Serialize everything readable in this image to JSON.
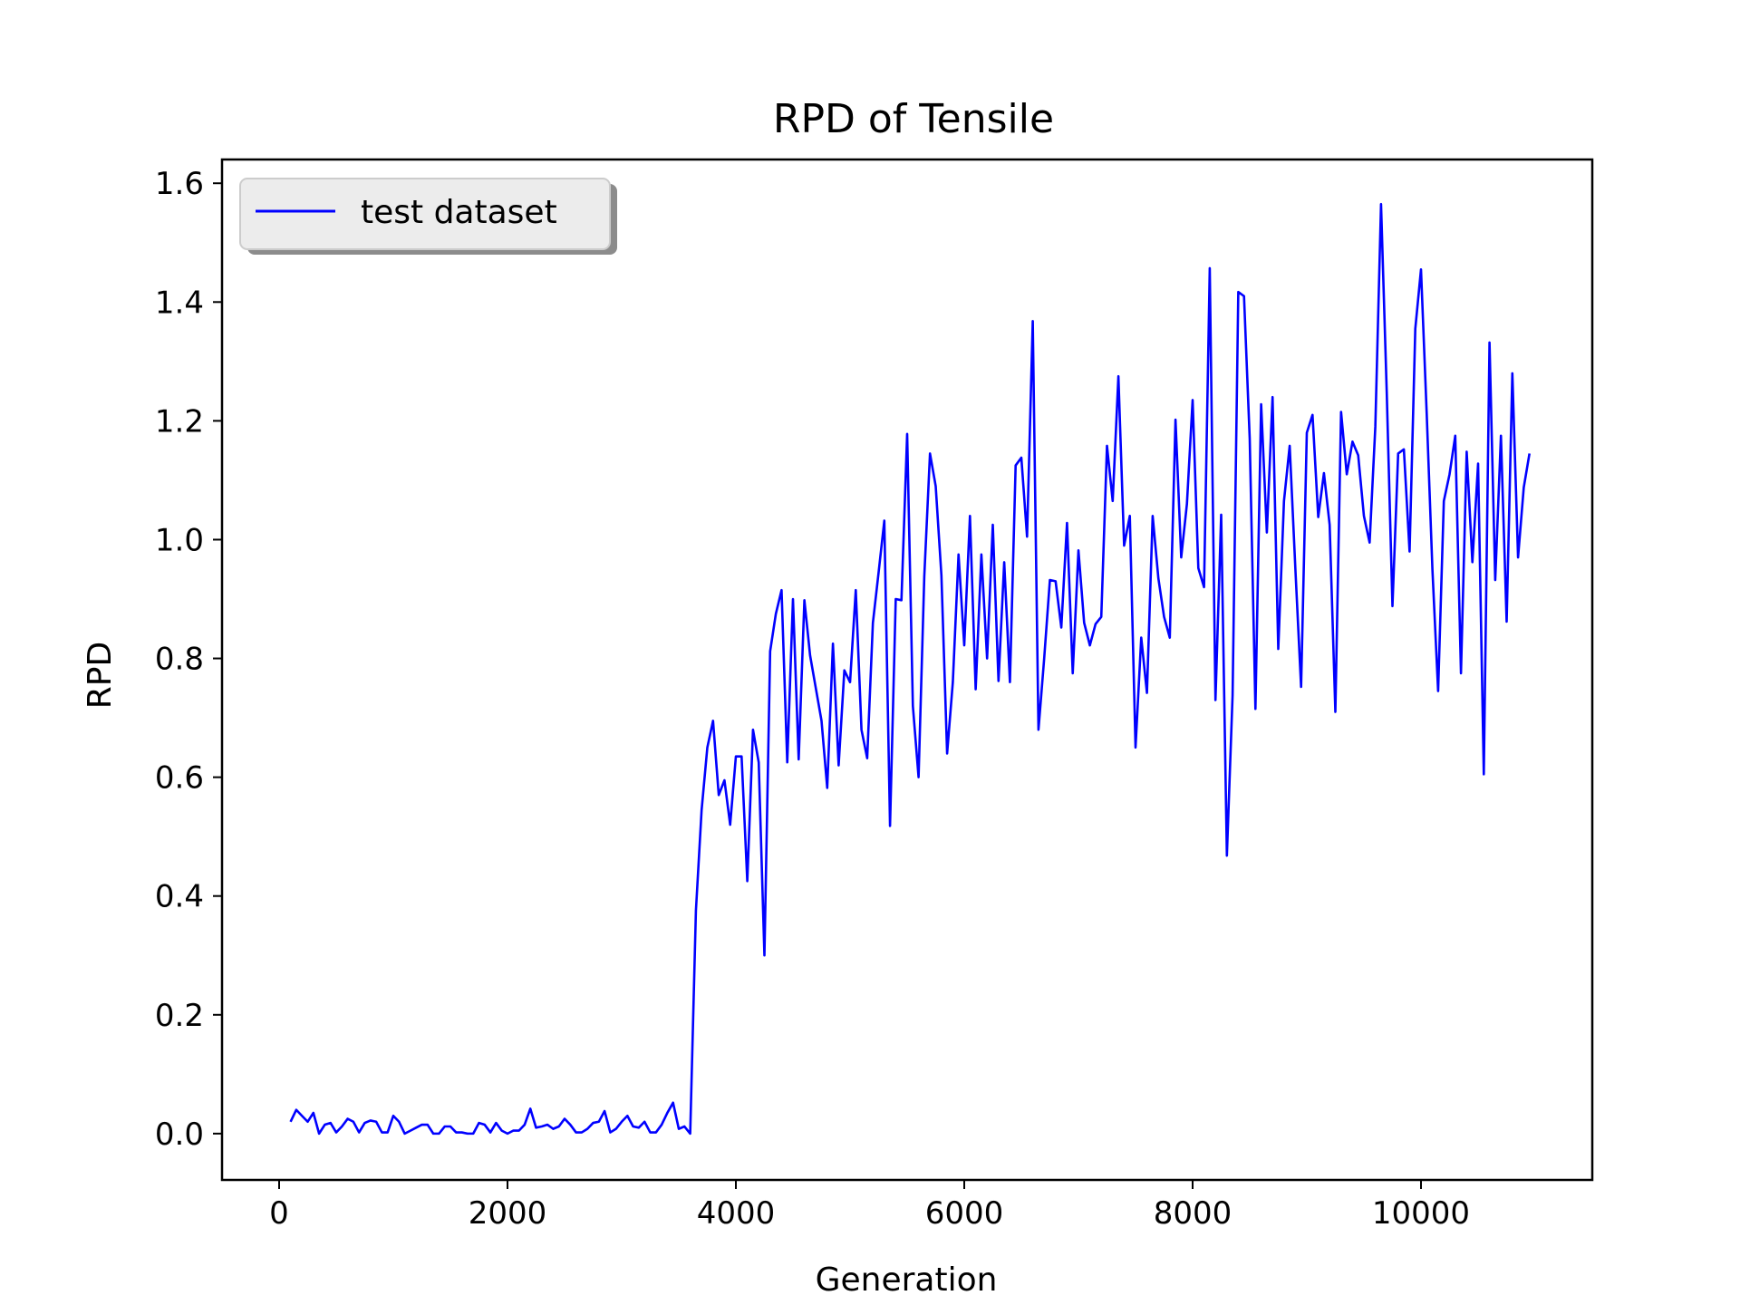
{
  "chart_data": {
    "type": "line",
    "title": "RPD of Tensile",
    "xlabel": "Generation",
    "ylabel": "RPD",
    "xlim": [
      -500,
      11500
    ],
    "ylim": [
      -0.078,
      1.64
    ],
    "xticks": [
      0,
      2000,
      4000,
      6000,
      8000,
      10000
    ],
    "yticks": [
      0.0,
      0.2,
      0.4,
      0.6,
      0.8,
      1.0,
      1.2,
      1.4,
      1.6
    ],
    "xtick_labels": [
      "0",
      "2000",
      "4000",
      "6000",
      "8000",
      "10000"
    ],
    "ytick_labels": [
      "0.0",
      "0.2",
      "0.4",
      "0.6",
      "0.8",
      "1.0",
      "1.2",
      "1.4",
      "1.6"
    ],
    "grid": false,
    "legend_position": "upper left",
    "series": [
      {
        "name": "test dataset",
        "color": "#0000ff",
        "x": [
          100,
          150,
          200,
          250,
          300,
          350,
          400,
          450,
          500,
          550,
          600,
          650,
          700,
          750,
          800,
          850,
          900,
          950,
          1000,
          1050,
          1100,
          1150,
          1200,
          1250,
          1300,
          1350,
          1400,
          1450,
          1500,
          1550,
          1600,
          1650,
          1700,
          1750,
          1800,
          1850,
          1900,
          1950,
          2000,
          2050,
          2100,
          2150,
          2200,
          2250,
          2300,
          2350,
          2400,
          2450,
          2500,
          2550,
          2600,
          2650,
          2700,
          2750,
          2800,
          2850,
          2900,
          2950,
          3000,
          3050,
          3100,
          3150,
          3200,
          3250,
          3300,
          3350,
          3400,
          3450,
          3500,
          3550,
          3600,
          3650,
          3700,
          3750,
          3800,
          3850,
          3900,
          3950,
          4000,
          4050,
          4100,
          4150,
          4200,
          4250,
          4300,
          4350,
          4400,
          4450,
          4500,
          4550,
          4600,
          4650,
          4700,
          4750,
          4800,
          4850,
          4900,
          4950,
          5000,
          5050,
          5100,
          5150,
          5200,
          5250,
          5300,
          5350,
          5400,
          5450,
          5500,
          5550,
          5600,
          5650,
          5700,
          5750,
          5800,
          5850,
          5900,
          5950,
          6000,
          6050,
          6100,
          6150,
          6200,
          6250,
          6300,
          6350,
          6400,
          6450,
          6500,
          6550,
          6600,
          6650,
          6700,
          6750,
          6800,
          6850,
          6900,
          6950,
          7000,
          7050,
          7100,
          7150,
          7200,
          7250,
          7300,
          7350,
          7400,
          7450,
          7500,
          7550,
          7600,
          7650,
          7700,
          7750,
          7800,
          7850,
          7900,
          7950,
          8000,
          8050,
          8100,
          8150,
          8200,
          8250,
          8300,
          8350,
          8400,
          8450,
          8500,
          8550,
          8600,
          8650,
          8700,
          8750,
          8800,
          8850,
          8900,
          8950,
          9000,
          9050,
          9100,
          9150,
          9200,
          9250,
          9300,
          9350,
          9400,
          9450,
          9500,
          9550,
          9600,
          9650,
          9700,
          9750,
          9800,
          9850,
          9900,
          9950,
          10000,
          10050,
          10100,
          10150,
          10200,
          10250,
          10300,
          10350,
          10400,
          10450,
          10500,
          10550,
          10600,
          10650,
          10700,
          10750,
          10800,
          10850,
          10900,
          10950
        ],
        "y": [
          0.02,
          0.04,
          0.03,
          0.02,
          0.035,
          0.0,
          0.015,
          0.018,
          0.002,
          0.012,
          0.025,
          0.02,
          0.002,
          0.018,
          0.022,
          0.02,
          0.002,
          0.002,
          0.03,
          0.02,
          0.0,
          0.005,
          0.01,
          0.015,
          0.015,
          0.0,
          0.0,
          0.012,
          0.012,
          0.002,
          0.002,
          0.0,
          0.0,
          0.018,
          0.015,
          0.002,
          0.018,
          0.005,
          0.0,
          0.005,
          0.005,
          0.015,
          0.042,
          0.01,
          0.012,
          0.015,
          0.008,
          0.012,
          0.025,
          0.015,
          0.002,
          0.002,
          0.008,
          0.018,
          0.02,
          0.038,
          0.002,
          0.008,
          0.02,
          0.03,
          0.012,
          0.01,
          0.02,
          0.002,
          0.002,
          0.015,
          0.035,
          0.052,
          0.008,
          0.012,
          0.0,
          0.375,
          0.545,
          0.65,
          0.695,
          0.57,
          0.595,
          0.52,
          0.635,
          0.635,
          0.425,
          0.68,
          0.625,
          0.3,
          0.812,
          0.875,
          0.915,
          0.625,
          0.9,
          0.63,
          0.898,
          0.805,
          0.75,
          0.695,
          0.582,
          0.825,
          0.62,
          0.78,
          0.76,
          0.915,
          0.68,
          0.632,
          0.86,
          0.945,
          1.032,
          0.518,
          0.9,
          0.898,
          1.178,
          0.72,
          0.6,
          0.938,
          1.145,
          1.09,
          0.94,
          0.64,
          0.76,
          0.975,
          0.822,
          1.04,
          0.748,
          0.975,
          0.8,
          1.025,
          0.762,
          0.962,
          0.76,
          1.125,
          1.138,
          1.005,
          1.368,
          0.68,
          0.8,
          0.932,
          0.93,
          0.852,
          1.028,
          0.775,
          0.982,
          0.86,
          0.822,
          0.858,
          0.87,
          1.158,
          1.065,
          1.275,
          0.99,
          1.04,
          0.65,
          0.835,
          0.742,
          1.04,
          0.935,
          0.87,
          0.835,
          1.202,
          0.97,
          1.06,
          1.235,
          0.952,
          0.92,
          1.457,
          0.73,
          1.042,
          0.468,
          0.738,
          1.417,
          1.41,
          1.17,
          0.715,
          1.228,
          1.012,
          1.24,
          0.816,
          1.065,
          1.158,
          0.95,
          0.752,
          1.18,
          1.21,
          1.038,
          1.112,
          1.025,
          0.71,
          1.215,
          1.11,
          1.165,
          1.142,
          1.04,
          0.995,
          1.19,
          1.565,
          1.248,
          0.888,
          1.145,
          1.152,
          0.98,
          1.355,
          1.455,
          1.212,
          0.95,
          0.745,
          1.065,
          1.11,
          1.175,
          0.775,
          1.148,
          0.962,
          1.128,
          0.605,
          1.332,
          0.932,
          1.175,
          0.862,
          1.28,
          0.97,
          1.088,
          1.145
        ]
      }
    ]
  }
}
